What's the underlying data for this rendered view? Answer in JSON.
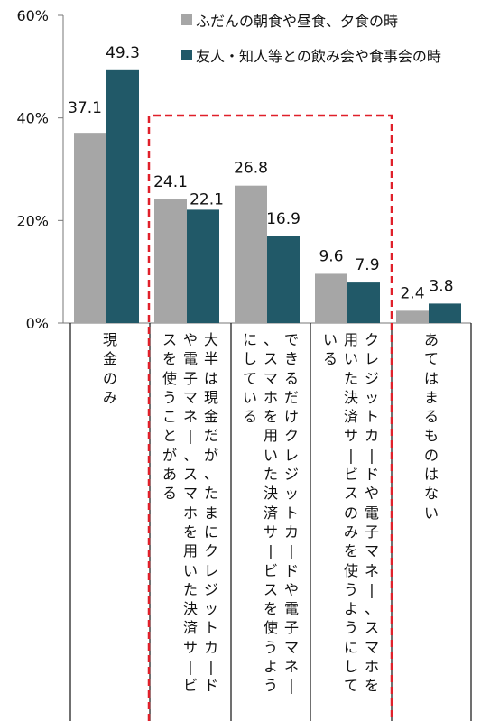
{
  "chart_data": {
    "type": "bar",
    "ylim": [
      0,
      60
    ],
    "yticks": [
      "0%",
      "20%",
      "40%",
      "60%"
    ],
    "series": [
      {
        "name": "ふだんの朝食や昼食、夕食の時",
        "color": "#a6a6a6",
        "values": [
          37.1,
          24.1,
          26.8,
          9.6,
          2.4
        ]
      },
      {
        "name": "友人・知人等との飲み会や食事会の時",
        "color": "#215968",
        "values": [
          49.3,
          22.1,
          16.9,
          7.9,
          3.8
        ]
      }
    ],
    "value_labels": [
      [
        "37.1",
        "24.1",
        "26.8",
        "9.6",
        "2.4"
      ],
      [
        "49.3",
        "22.1",
        "16.9",
        "7.9",
        "3.8"
      ]
    ],
    "categories": [
      "現金のみ",
      "大半は現金だが、たまにクレジットカードや電子マネー、スマホを用いた決済サービスを使うことがある",
      "できるだけクレジットカードや電子マネー、スマホを用いた決済サービスを使うようにしている",
      "クレジットカードや電子マネー、スマホを用いた決済サービスのみを使うようにしている",
      "あてはまるものはない"
    ],
    "highlight_color": "#e0202a"
  }
}
